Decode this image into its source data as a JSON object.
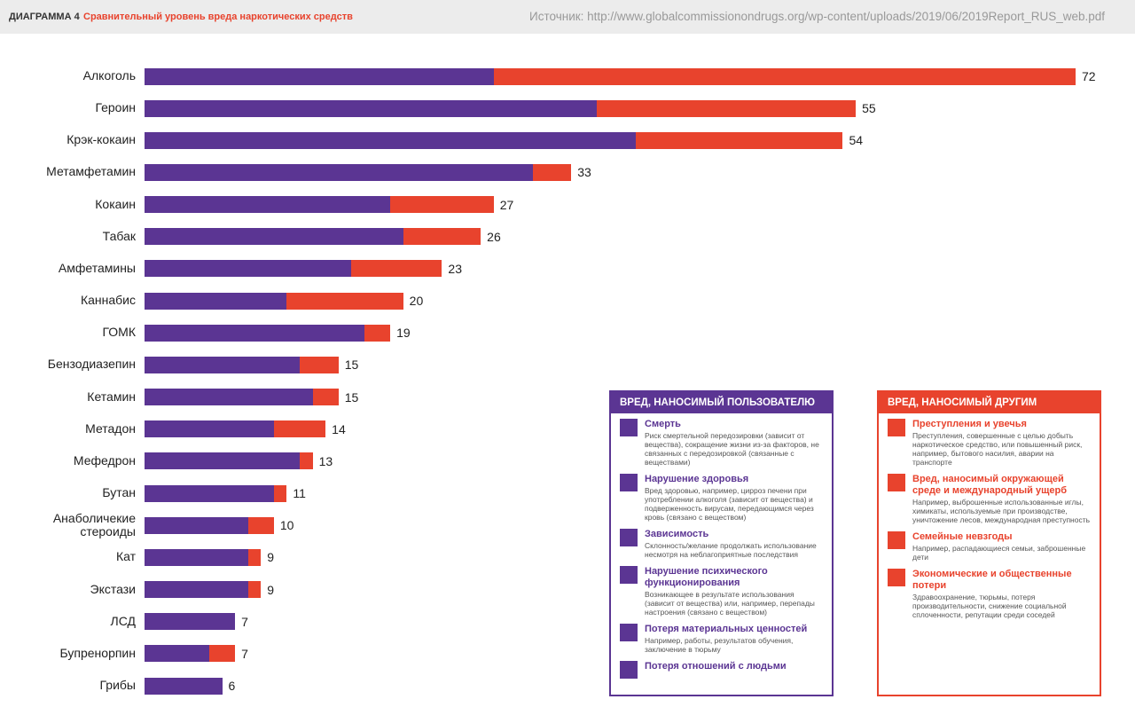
{
  "header": {
    "label": "ДИАГРАММА 4",
    "title": "Сравнительный уровень вреда наркотических средств",
    "source": "Источник: http://www.globalcommissionondrugs.org/wp-content/uploads/2019/06/2019Report_RUS_web.pdf"
  },
  "chart_data": {
    "type": "stacked-bar-horizontal",
    "categories": [
      "Алкоголь",
      "Героин",
      "Крэк-кокаин",
      "Метамфетамин",
      "Кокаин",
      "Табак",
      "Амфетамины",
      "Каннабис",
      "ГОМК",
      "Бензодиазепин",
      "Кетамин",
      "Метадон",
      "Мефедрон",
      "Бутан",
      "Анаболичекие стероиды",
      "Кат",
      "Экстази",
      "ЛСД",
      "Бупренорпин",
      "Грибы"
    ],
    "series": [
      {
        "name": "ВРЕД, НАНОСИМЫЙ ПОЛЬЗОВАТЕЛЮ",
        "color": "#5b3593",
        "values": [
          27,
          35,
          38,
          30,
          19,
          20,
          16,
          11,
          17,
          12,
          13,
          10,
          12,
          10,
          8,
          8,
          8,
          7,
          5,
          6
        ],
        "items": [
          {
            "title": "Смерть",
            "text": "Риск смертельной передозировки (зависит от вещества), сокращение жизни из-за факторов, не связанных с передозировкой (связанные с веществами)"
          },
          {
            "title": "Нарушение здоровья",
            "text": "Вред здоровью, например, цирроз печени при употреблении алкоголя (зависит от вещества) и подверженность вирусам, передающимся через кровь (связано с веществом)"
          },
          {
            "title": "Зависимость",
            "text": "Склонность/желание продолжать использование несмотря на неблагоприятные последствия"
          },
          {
            "title": "Нарушение психического функционирования",
            "text": "Возникающее в результате использования (зависит от вещества) или, например, перепады настроения (связано с веществом)"
          },
          {
            "title": "Потеря материальных ценностей",
            "text": "Например, работы, результатов обучения, заключение в тюрьму"
          },
          {
            "title": "Потеря отношений с людьми"
          }
        ]
      },
      {
        "name": "ВРЕД, НАНОСИМЫЙ ДРУГИМ",
        "color": "#e8432d",
        "values": [
          45,
          20,
          16,
          3,
          8,
          6,
          7,
          9,
          2,
          3,
          2,
          4,
          1,
          1,
          2,
          1,
          1,
          0,
          2,
          0
        ],
        "items": [
          {
            "title": "Преступления и увечья",
            "text": "Преступления, совершенные с целью добыть наркотическое средство, или повышенный риск, например, бытового насилия, аварии на транспорте"
          },
          {
            "title": "Вред, наносимый окружающей среде и международный ущерб",
            "text": "Например, выброшенные использованные иглы, химикаты, используемые при производстве, уничтожение лесов, международная преступность"
          },
          {
            "title": "Семейные невзгоды",
            "text": "Например, распадающиеся семьи, заброшенные дети"
          },
          {
            "title": "Экономические и общественные потери",
            "text": "Здравоохранение, тюрьмы, потеря производительности, снижение социальной сплоченности, репутации среди соседей"
          }
        ]
      }
    ],
    "totals": [
      72,
      55,
      54,
      33,
      27,
      26,
      23,
      20,
      19,
      15,
      15,
      14,
      13,
      11,
      10,
      9,
      9,
      7,
      7,
      6
    ]
  }
}
